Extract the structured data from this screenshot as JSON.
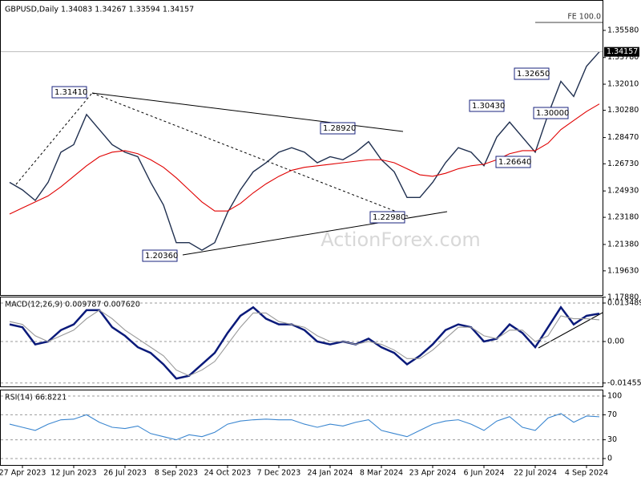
{
  "chart_data": [
    {
      "type": "line",
      "title": "GBPUSD,Daily  1.34083 1.34267 1.33594 1.34157",
      "watermark": "ActionForex.com",
      "series": [
        {
          "name": "Close",
          "color": "#1f2f4f",
          "values": [
            1.255,
            1.25,
            1.243,
            1.255,
            1.275,
            1.28,
            1.3,
            1.29,
            1.28,
            1.275,
            1.272,
            1.255,
            1.24,
            1.215,
            1.215,
            1.21,
            1.215,
            1.235,
            1.25,
            1.262,
            1.268,
            1.275,
            1.278,
            1.275,
            1.268,
            1.272,
            1.27,
            1.275,
            1.282,
            1.27,
            1.262,
            1.245,
            1.245,
            1.255,
            1.268,
            1.278,
            1.275,
            1.266,
            1.285,
            1.295,
            1.285,
            1.275,
            1.3,
            1.322,
            1.312,
            1.332,
            1.34157
          ]
        },
        {
          "name": "MA",
          "color": "#e00000",
          "values": [
            1.234,
            1.238,
            1.242,
            1.246,
            1.252,
            1.259,
            1.266,
            1.272,
            1.275,
            1.276,
            1.274,
            1.27,
            1.265,
            1.258,
            1.25,
            1.242,
            1.236,
            1.236,
            1.241,
            1.248,
            1.254,
            1.259,
            1.263,
            1.265,
            1.266,
            1.267,
            1.268,
            1.269,
            1.27,
            1.27,
            1.268,
            1.264,
            1.26,
            1.259,
            1.261,
            1.264,
            1.266,
            1.267,
            1.27,
            1.274,
            1.276,
            1.276,
            1.281,
            1.29,
            1.296,
            1.302,
            1.307
          ]
        }
      ],
      "ylim": [
        1.18027,
        1.37542
      ],
      "yticks": [
        {
          "value": 1.3558,
          "label": "1.35580"
        },
        {
          "value": 1.3378,
          "label": "1.33780"
        },
        {
          "value": 1.3201,
          "label": "1.32010"
        },
        {
          "value": 1.3028,
          "label": "1.30280"
        },
        {
          "value": 1.2847,
          "label": "1.28470"
        },
        {
          "value": 1.2673,
          "label": "1.26730"
        },
        {
          "value": 1.2493,
          "label": "1.24930"
        },
        {
          "value": 1.2318,
          "label": "1.23180"
        },
        {
          "value": 1.2138,
          "label": "1.21380"
        },
        {
          "value": 1.1963,
          "label": "1.19630"
        },
        {
          "value": 1.1788,
          "label": "1.17880"
        }
      ],
      "last_price_label": "1.34157",
      "fe_label": "FE 100.0",
      "annotations": [
        "1.31410",
        "1.28920",
        "1.22980",
        "1.20360",
        "1.30430",
        "1.32650",
        "1.30000",
        "1.26640"
      ]
    },
    {
      "type": "line",
      "title": "MACD(12,26,9) 0.009787 0.007620",
      "series": [
        {
          "name": "MACD",
          "color": "#0a1a7a",
          "values": [
            0.006,
            0.005,
            -0.001,
            0,
            0.004,
            0.006,
            0.011,
            0.011,
            0.005,
            0.002,
            -0.002,
            -0.004,
            -0.008,
            -0.013,
            -0.012,
            -0.008,
            -0.004,
            0.003,
            0.009,
            0.012,
            0.008,
            0.006,
            0.006,
            0.004,
            0,
            -0.001,
            0,
            -0.001,
            0.001,
            -0.002,
            -0.004,
            -0.008,
            -0.005,
            -0.001,
            0.004,
            0.006,
            0.005,
            0,
            0.001,
            0.006,
            0.003,
            -0.002,
            0.005,
            0.012,
            0.006,
            0.009,
            0.009787
          ]
        },
        {
          "name": "Signal",
          "color": "#999999",
          "values": [
            0.007,
            0.006,
            0.002,
            0,
            0.002,
            0.004,
            0.008,
            0.011,
            0.008,
            0.004,
            0.001,
            -0.002,
            -0.005,
            -0.01,
            -0.012,
            -0.01,
            -0.007,
            -0.001,
            0.005,
            0.01,
            0.01,
            0.007,
            0.006,
            0.005,
            0.002,
            0,
            0,
            -0.001,
            0,
            -0.001,
            -0.003,
            -0.006,
            -0.006,
            -0.003,
            0.001,
            0.005,
            0.005,
            0.002,
            0.001,
            0.004,
            0.004,
            0,
            0.002,
            0.009,
            0.008,
            0.008,
            0.00762
          ]
        }
      ],
      "ylim": [
        -0.01574,
        0.01546
      ],
      "yticks": [
        0.013489,
        {
          "value": 0,
          "label": "0.00"
        },
        -0.014554
      ]
    },
    {
      "type": "line",
      "title": "RSI(14) 66.8221",
      "categories": [
        null,
        "27 Apr 2023",
        null,
        null,
        null,
        "12 Jun 2023",
        null,
        null,
        null,
        "26 Jul 2023",
        null,
        null,
        null,
        "8 Sep 2023",
        null,
        null,
        null,
        "24 Oct 2023",
        null,
        null,
        null,
        "7 Dec 2023",
        null,
        null,
        null,
        "24 Jan 2024",
        null,
        null,
        null,
        "8 Mar 2024",
        null,
        null,
        null,
        "23 Apr 2024",
        null,
        null,
        null,
        "6 Jun 2024",
        null,
        null,
        null,
        "22 Jul 2024",
        null,
        null,
        null,
        "4 Sep 2024",
        null
      ],
      "series": [
        {
          "name": "RSI",
          "color": "#3a86d0",
          "values": [
            55,
            50,
            45,
            55,
            62,
            63,
            70,
            58,
            50,
            48,
            52,
            40,
            35,
            30,
            38,
            35,
            42,
            55,
            60,
            62,
            63,
            62,
            62,
            55,
            50,
            55,
            52,
            58,
            62,
            45,
            40,
            35,
            45,
            55,
            60,
            62,
            55,
            45,
            60,
            67,
            50,
            45,
            65,
            72,
            58,
            68,
            66.8221
          ]
        }
      ],
      "ylim": [
        -10.3,
        109
      ],
      "yticks": [
        100,
        70,
        30,
        0
      ]
    }
  ]
}
